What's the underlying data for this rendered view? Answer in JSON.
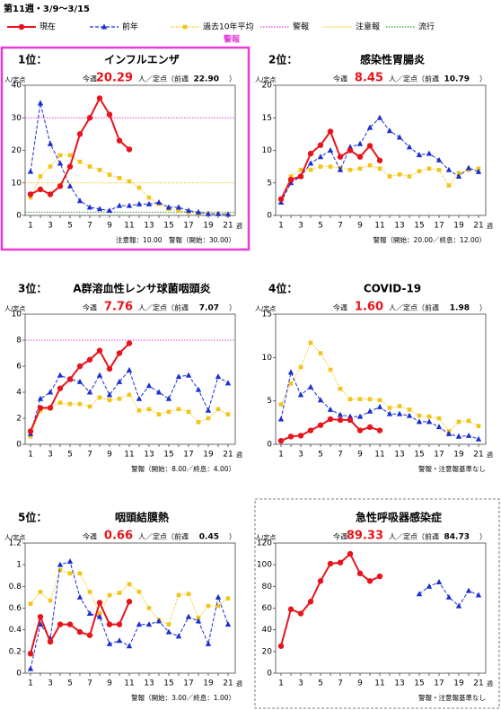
{
  "header": {
    "title": "第11週・3/9～3/15",
    "warning_label": "警報"
  },
  "legend": [
    {
      "name": "現在",
      "color": "#e8141b",
      "style": "solid"
    },
    {
      "name": "前年",
      "color": "#1a2fd0",
      "style": "dashed"
    },
    {
      "name": "過去10年平均",
      "color": "#f2c417",
      "style": "dotted"
    },
    {
      "name": "警報",
      "color": "#e83ad6",
      "style": "dotted"
    },
    {
      "name": "注意報",
      "color": "#f2c417",
      "style": "dotted"
    },
    {
      "name": "流行",
      "color": "#2a9a2a",
      "style": "dotted"
    }
  ],
  "chart_data": [
    {
      "type": "line",
      "border": "highlight",
      "rank": "1位：",
      "title": "インフルエンザ",
      "week_label": "今週",
      "value_label": "20.29",
      "unit_label": "人／定点（前週",
      "prev_label": "22.90",
      "close": "）",
      "y_label": "人/定点",
      "x_unit": "週",
      "note": "注意報：10.00　警報（開始：30.00）",
      "x": [
        1,
        2,
        3,
        4,
        5,
        6,
        7,
        8,
        9,
        10,
        11,
        12,
        13,
        14,
        15,
        16,
        17,
        18,
        19,
        20,
        21
      ],
      "xticks": [
        1,
        3,
        5,
        7,
        9,
        11,
        13,
        15,
        17,
        19,
        21
      ],
      "ylim": [
        0,
        40
      ],
      "yticks": [
        0,
        10,
        20,
        30,
        40
      ],
      "alarm_line": 30,
      "caution_line": 10,
      "epidemic_line": 1,
      "current": [
        6.5,
        8,
        6.5,
        9,
        15,
        25,
        30,
        36,
        31,
        23,
        20.29
      ],
      "previous": [
        13.5,
        34.5,
        22,
        16,
        9,
        4.5,
        2.5,
        2,
        1.5,
        3,
        3,
        3.5,
        3.5,
        4,
        2.5,
        2.5,
        1.5,
        1,
        0.5,
        0.5,
        0.3
      ],
      "average": [
        5.5,
        12,
        15,
        18.5,
        18.5,
        16.5,
        15,
        14,
        12.5,
        11.5,
        10.5,
        8.5,
        5.5,
        3.5,
        2,
        1.5,
        1,
        0.7,
        0.5,
        0.4,
        0.3
      ]
    },
    {
      "type": "line",
      "rank": "2位：",
      "title": "感染性胃腸炎",
      "week_label": "今週",
      "value_label": "8.45",
      "unit_label": "人／定点（前週",
      "prev_label": "10.79",
      "close": "）",
      "y_label": "人/定点",
      "x_unit": "週",
      "note": "警報（開始：20.00／終息：12.00）",
      "x": [
        1,
        2,
        3,
        4,
        5,
        6,
        7,
        8,
        9,
        10,
        11,
        12,
        13,
        14,
        15,
        16,
        17,
        18,
        19,
        20,
        21
      ],
      "xticks": [
        1,
        3,
        5,
        7,
        9,
        11,
        13,
        15,
        17,
        19,
        21
      ],
      "ylim": [
        0,
        20
      ],
      "yticks": [
        0,
        5,
        10,
        15,
        20
      ],
      "current": [
        2.5,
        5.5,
        6,
        9.5,
        10.8,
        12.9,
        9,
        10,
        9,
        10.7,
        8.45
      ],
      "previous": [
        2,
        5,
        6,
        8,
        9,
        10,
        7,
        10.5,
        11,
        13.5,
        15,
        13,
        12,
        10.5,
        9.3,
        9.5,
        8.5,
        7,
        6,
        7.3,
        6.7
      ],
      "average": [
        2.5,
        6,
        7,
        7,
        7.5,
        7.5,
        7.3,
        7,
        7.2,
        7.7,
        7.2,
        6,
        6.3,
        6,
        6.8,
        7.2,
        7,
        4.6,
        6.5,
        7,
        7.2
      ]
    },
    {
      "type": "line",
      "rank": "3位：",
      "title": "A群溶血性レンサ球菌咽頭炎",
      "week_label": "今週",
      "value_label": "7.76",
      "unit_label": "人／定点（前週",
      "prev_label": "7.07",
      "close": "）",
      "y_label": "人/定点",
      "x_unit": "週",
      "note": "警報（開始：8.00／終息：4.00）",
      "x": [
        1,
        2,
        3,
        4,
        5,
        6,
        7,
        8,
        9,
        10,
        11,
        12,
        13,
        14,
        15,
        16,
        17,
        18,
        19,
        20,
        21
      ],
      "xticks": [
        1,
        3,
        5,
        7,
        9,
        11,
        13,
        15,
        17,
        19,
        21
      ],
      "ylim": [
        0,
        10
      ],
      "yticks": [
        0,
        2,
        4,
        6,
        8,
        10
      ],
      "alarm_line": 8,
      "current": [
        1,
        2.8,
        2.8,
        4.3,
        5,
        6,
        6.5,
        7.2,
        5.8,
        7,
        7.76
      ],
      "previous": [
        0.8,
        3.5,
        4,
        5.3,
        5,
        4.8,
        4,
        5.3,
        3.8,
        4.8,
        5.7,
        3.5,
        4.5,
        4,
        3.5,
        5.2,
        5.3,
        4.2,
        2.6,
        5.2,
        4.7
      ],
      "average": [
        0.6,
        2.6,
        2.8,
        3.2,
        3.1,
        3.1,
        2.9,
        3.6,
        3.4,
        3.5,
        3.8,
        2.6,
        2.7,
        2.3,
        2.5,
        2.7,
        2.5,
        1.7,
        2,
        2.7,
        2.3
      ]
    },
    {
      "type": "line",
      "rank": "4位：",
      "title": "COVID-19",
      "week_label": "今週",
      "value_label": "1.60",
      "unit_label": "人／定点（前週",
      "prev_label": "1.98",
      "close": "）",
      "y_label": "人/定点",
      "x_unit": "週",
      "note": "警報・注意報基準なし",
      "x": [
        1,
        2,
        3,
        4,
        5,
        6,
        7,
        8,
        9,
        10,
        11,
        12,
        13,
        14,
        15,
        16,
        17,
        18,
        19,
        20,
        21
      ],
      "xticks": [
        1,
        3,
        5,
        7,
        9,
        11,
        13,
        15,
        17,
        19,
        21
      ],
      "ylim": [
        0,
        15
      ],
      "yticks": [
        0,
        5,
        10,
        15
      ],
      "current": [
        0.4,
        0.9,
        1,
        1.6,
        2.2,
        2.9,
        2.8,
        2.8,
        1.6,
        1.98,
        1.6
      ],
      "previous": [
        2.9,
        8.3,
        5.7,
        6.6,
        5.1,
        4,
        3.4,
        3.2,
        3.2,
        3.8,
        4.3,
        3.5,
        3.5,
        3.3,
        2.6,
        2.6,
        2,
        1.2,
        0.9,
        1,
        0.6
      ],
      "average": [
        4.6,
        7,
        8.9,
        11.7,
        10.5,
        8.6,
        6.4,
        5.2,
        5.2,
        5.2,
        5.1,
        4.2,
        4.4,
        4,
        3.3,
        3.2,
        3,
        1.5,
        2.6,
        2.7,
        2.1
      ]
    },
    {
      "type": "line",
      "rank": "5位：",
      "title": "咽頭結膜熱",
      "week_label": "今週",
      "value_label": "0.66",
      "unit_label": "人／定点（前週",
      "prev_label": "0.45",
      "close": "）",
      "y_label": "人/定点",
      "x_unit": "週",
      "note": "警報（開始：3.00／終息：1.00）",
      "x": [
        1,
        2,
        3,
        4,
        5,
        6,
        7,
        8,
        9,
        10,
        11,
        12,
        13,
        14,
        15,
        16,
        17,
        18,
        19,
        20,
        21
      ],
      "xticks": [
        1,
        3,
        5,
        7,
        9,
        11,
        13,
        15,
        17,
        19,
        21
      ],
      "ylim": [
        0,
        1.2
      ],
      "yticks": [
        0,
        0.2,
        0.4,
        0.6,
        0.8,
        1,
        1.2
      ],
      "current": [
        0.18,
        0.52,
        0.29,
        0.45,
        0.45,
        0.38,
        0.35,
        0.65,
        0.45,
        0.45,
        0.66
      ],
      "previous": [
        0.04,
        0.45,
        0.32,
        1.0,
        1.03,
        0.7,
        0.55,
        0.52,
        0.27,
        0.3,
        0.25,
        0.45,
        0.45,
        0.48,
        0.38,
        0.34,
        0.52,
        0.48,
        0.27,
        0.7,
        0.45
      ],
      "average": [
        0.64,
        0.75,
        0.67,
        0.95,
        0.92,
        0.92,
        0.75,
        0.55,
        0.72,
        0.74,
        0.82,
        0.75,
        0.6,
        0.49,
        0.45,
        0.72,
        0.73,
        0.51,
        0.62,
        0.62,
        0.69
      ]
    },
    {
      "type": "line",
      "border": "dashed",
      "title": "急性呼吸器感染症",
      "week_label": "今週",
      "value_label": "89.33",
      "unit_label": "人／定点（前週",
      "prev_label": "84.73",
      "close": "）",
      "y_label": "人/定点",
      "x_unit": "週",
      "note": "警報・注意報基準なし",
      "x": [
        1,
        2,
        3,
        4,
        5,
        6,
        7,
        8,
        9,
        10,
        11,
        12,
        13,
        14,
        15,
        16,
        17,
        18,
        19,
        20,
        21
      ],
      "xticks": [
        1,
        3,
        5,
        7,
        9,
        11,
        13,
        15,
        17,
        19,
        21
      ],
      "ylim": [
        0,
        120
      ],
      "yticks": [
        0,
        20,
        40,
        60,
        80,
        100,
        120
      ],
      "current": [
        25,
        59,
        55,
        66,
        85,
        101,
        102,
        110,
        92,
        85,
        89.33
      ],
      "previous": [
        null,
        null,
        null,
        null,
        null,
        null,
        null,
        null,
        null,
        null,
        null,
        null,
        null,
        null,
        73,
        80,
        84,
        70,
        62,
        76,
        72
      ]
    }
  ]
}
